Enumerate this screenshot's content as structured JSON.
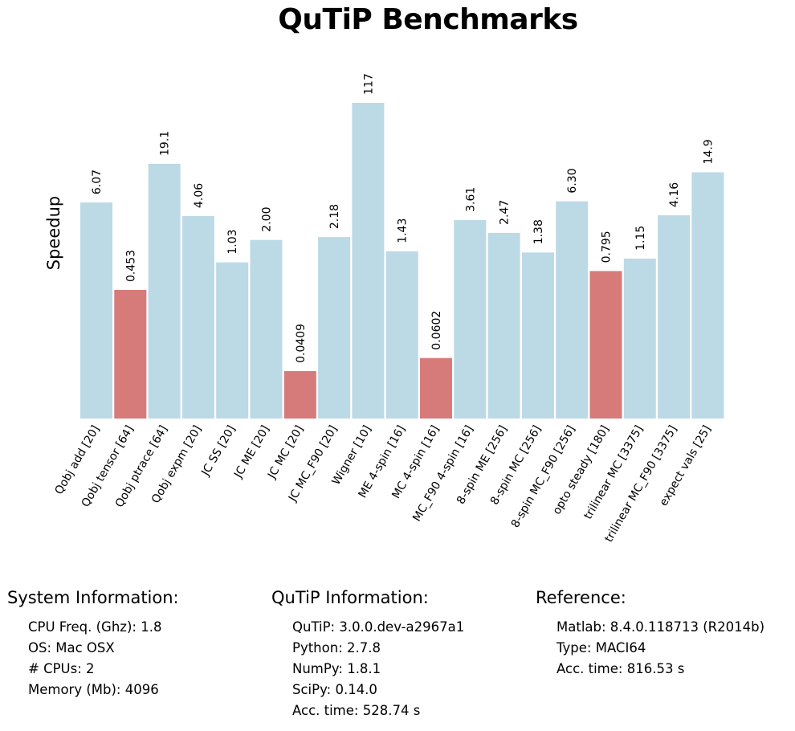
{
  "chart_data": {
    "type": "bar",
    "title": "QuTiP Benchmarks",
    "ylabel": "Speedup",
    "xlabel": "",
    "grid": false,
    "categories": [
      "Qobj add [20]",
      "Qobj tensor [64]",
      "Qobj ptrace [64]",
      "Qobj expm [20]",
      "JC SS [20]",
      "JC ME [20]",
      "JC MC [20]",
      "JC MC_F90 [20]",
      "Wigner [10]",
      "ME 4-spin [16]",
      "MC 4-spin [16]",
      "MC_F90 4-spin [16]",
      "8-spin ME [256]",
      "8-spin MC [256]",
      "8-spin MC_F90 [256]",
      "opto steady [180]",
      "trilinear MC [3375]",
      "trilinear MC_F90 [3375]",
      "expect vals [25]"
    ],
    "values": [
      6.07,
      0.453,
      19.1,
      4.06,
      1.03,
      2.0,
      0.0409,
      2.18,
      117,
      1.43,
      0.0602,
      3.61,
      2.47,
      1.38,
      6.3,
      0.795,
      1.15,
      4.16,
      14.9
    ],
    "value_labels": [
      "6.07",
      "0.453",
      "19.1",
      "4.06",
      "1.03",
      "2.00",
      "0.0409",
      "2.18",
      "117",
      "1.43",
      "0.0602",
      "3.61",
      "2.47",
      "1.38",
      "6.30",
      "0.795",
      "1.15",
      "4.16",
      "14.9"
    ],
    "scale": "log",
    "colors": {
      "faster": "#bcd9e6",
      "slower": "#d77a7a"
    }
  },
  "system_info": {
    "title": "System Information:",
    "rows": [
      "CPU Freq. (Ghz): 1.8",
      "OS: Mac OSX",
      "# CPUs: 2",
      "Memory (Mb): 4096"
    ]
  },
  "qutip_info": {
    "title": "QuTiP Information:",
    "rows": [
      "QuTiP: 3.0.0.dev-a2967a1",
      "Python: 2.7.8",
      "NumPy: 1.8.1",
      "SciPy: 0.14.0",
      "Acc. time: 528.74 s"
    ]
  },
  "reference_info": {
    "title": "Reference:",
    "rows": [
      "Matlab: 8.4.0.118713 (R2014b)",
      "Type: MACI64",
      "Acc. time: 816.53 s"
    ]
  }
}
